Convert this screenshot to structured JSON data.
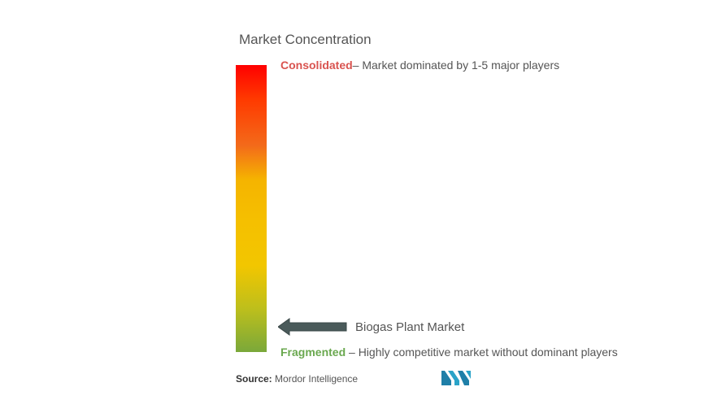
{
  "title": "Market Concentration",
  "consolidated": {
    "label": "Consolidated",
    "description": "– Market dominated by 1-5 major players"
  },
  "fragmented": {
    "label": "Fragmented",
    "description": " – Highly competitive market without dominant players"
  },
  "market": {
    "name": "Biogas Plant Market"
  },
  "source": {
    "label": "Source:",
    "value": " Mordor Intelligence"
  },
  "colors": {
    "consolidated": "#d9534f",
    "fragmented": "#6aa84f",
    "arrow": "#4a5a5a",
    "logo": "#2aa3c8"
  },
  "icons": {
    "arrow": "left-arrow-icon",
    "logo": "mordor-intelligence-logo"
  }
}
